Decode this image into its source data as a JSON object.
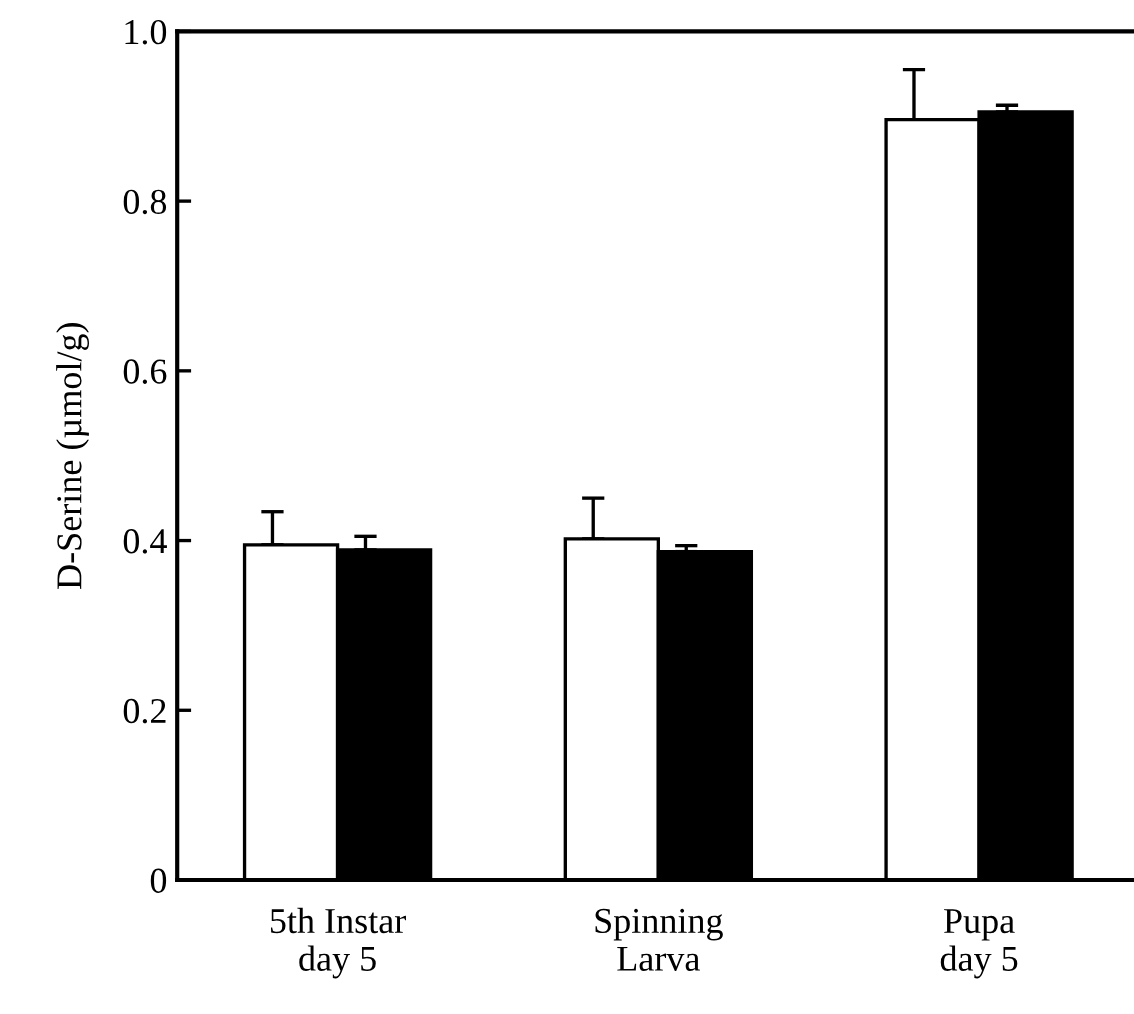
{
  "chart_data": {
    "type": "bar",
    "ylabel": "D-Serine (µmol/g)",
    "categories": [
      "5th Instar\nday 5",
      "Spinning\nLarva",
      "Pupa\nday 5"
    ],
    "series": [
      {
        "color": "#ffffff",
        "values": [
          0.395,
          0.402,
          0.896
        ],
        "errors": [
          [
            0.395,
            0.434
          ],
          [
            0.402,
            0.45
          ],
          [
            0.896,
            0.955
          ]
        ]
      },
      {
        "color": "#000000",
        "values": [
          0.389,
          0.387,
          0.905
        ],
        "errors": [
          [
            0.389,
            0.405
          ],
          [
            0.387,
            0.394
          ],
          [
            0.905,
            0.913
          ]
        ]
      }
    ],
    "ylim": [
      0,
      1.0
    ],
    "yticks": [
      {
        "value": 0,
        "label": "0"
      },
      0.2,
      0.4,
      0.6,
      0.8,
      {
        "value": 1.0,
        "label": "1.0"
      }
    ],
    "grid": false,
    "legend": false
  }
}
